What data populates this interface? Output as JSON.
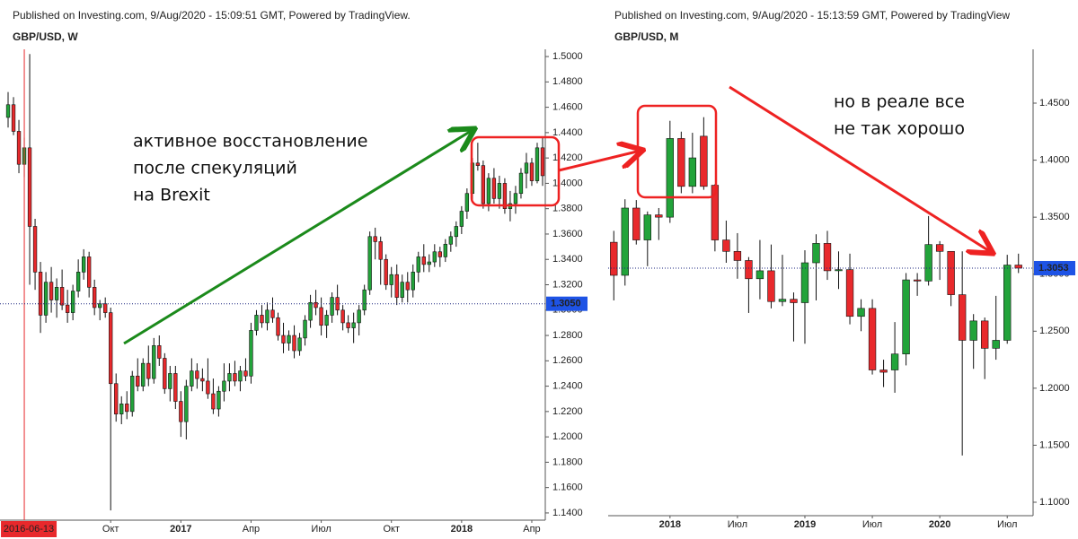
{
  "chart_data": [
    {
      "type": "candlestick",
      "title": "Published on Investing.com, 9/Aug/2020 - 15:09:51 GMT, Powered by TradingView.",
      "subtitle": "GBP/USD, W",
      "up_color": "#22a33a",
      "down_color": "#e8292c",
      "xlim": [
        -1.5,
        99.5
      ],
      "ylim": [
        1.1343,
        1.5057
      ],
      "yticks": [
        {
          "value": 1.5,
          "label": "1.5000"
        },
        {
          "value": 1.48,
          "label": "1.4800"
        },
        {
          "value": 1.46,
          "label": "1.4600"
        },
        {
          "value": 1.44,
          "label": "1.4400"
        },
        {
          "value": 1.42,
          "label": "1.4200"
        },
        {
          "value": 1.4,
          "label": "1.4000"
        },
        {
          "value": 1.38,
          "label": "1.3800"
        },
        {
          "value": 1.36,
          "label": "1.3600"
        },
        {
          "value": 1.34,
          "label": "1.3400"
        },
        {
          "value": 1.32,
          "label": "1.3200"
        },
        {
          "value": 1.3,
          "label": "1.3000"
        },
        {
          "value": 1.28,
          "label": "1.2800"
        },
        {
          "value": 1.26,
          "label": "1.2600"
        },
        {
          "value": 1.24,
          "label": "1.2400"
        },
        {
          "value": 1.22,
          "label": "1.2200"
        },
        {
          "value": 1.2,
          "label": "1.2000"
        },
        {
          "value": 1.18,
          "label": "1.1800"
        },
        {
          "value": 1.16,
          "label": "1.1600"
        },
        {
          "value": 1.14,
          "label": "1.1400"
        }
      ],
      "xticks": [
        {
          "value": 19,
          "label": "Окт"
        },
        {
          "value": 32,
          "label": "2017",
          "bold": true
        },
        {
          "value": 45,
          "label": "Апр"
        },
        {
          "value": 58,
          "label": "Июл"
        },
        {
          "value": 71,
          "label": "Окт"
        },
        {
          "value": 84,
          "label": "2018",
          "bold": true
        },
        {
          "value": 97,
          "label": "Апр"
        }
      ],
      "cursor": {
        "value": 3,
        "label": "2016-06-13",
        "color": "#e8292c"
      },
      "last_price": {
        "value": 1.305,
        "label": "1.3050",
        "color": "#1e53e5"
      },
      "annotations": [
        "активное восстановление",
        "после спекуляций",
        "на Brexit"
      ],
      "candles": [
        [
          1.452,
          1.472,
          1.444,
          1.462
        ],
        [
          1.462,
          1.468,
          1.438,
          1.441
        ],
        [
          1.441,
          1.45,
          1.408,
          1.415
        ],
        [
          1.415,
          1.436,
          1.405,
          1.428
        ],
        [
          1.428,
          1.502,
          1.32,
          1.366
        ],
        [
          1.366,
          1.372,
          1.316,
          1.33
        ],
        [
          1.33,
          1.338,
          1.282,
          1.296
        ],
        [
          1.296,
          1.33,
          1.29,
          1.322
        ],
        [
          1.322,
          1.334,
          1.298,
          1.308
        ],
        [
          1.308,
          1.325,
          1.294,
          1.318
        ],
        [
          1.318,
          1.332,
          1.3,
          1.304
        ],
        [
          1.304,
          1.316,
          1.29,
          1.298
        ],
        [
          1.298,
          1.32,
          1.292,
          1.315
        ],
        [
          1.315,
          1.34,
          1.31,
          1.33
        ],
        [
          1.33,
          1.348,
          1.324,
          1.342
        ],
        [
          1.342,
          1.346,
          1.31,
          1.318
        ],
        [
          1.318,
          1.324,
          1.296,
          1.302
        ],
        [
          1.302,
          1.308,
          1.292,
          1.305
        ],
        [
          1.305,
          1.31,
          1.294,
          1.298
        ],
        [
          1.298,
          1.302,
          1.142,
          1.242
        ],
        [
          1.242,
          1.25,
          1.212,
          1.218
        ],
        [
          1.218,
          1.232,
          1.21,
          1.226
        ],
        [
          1.226,
          1.236,
          1.214,
          1.22
        ],
        [
          1.22,
          1.252,
          1.216,
          1.248
        ],
        [
          1.248,
          1.262,
          1.236,
          1.24
        ],
        [
          1.24,
          1.262,
          1.236,
          1.258
        ],
        [
          1.258,
          1.272,
          1.24,
          1.246
        ],
        [
          1.246,
          1.278,
          1.242,
          1.272
        ],
        [
          1.272,
          1.28,
          1.256,
          1.262
        ],
        [
          1.262,
          1.266,
          1.234,
          1.238
        ],
        [
          1.238,
          1.256,
          1.228,
          1.25
        ],
        [
          1.25,
          1.256,
          1.222,
          1.228
        ],
        [
          1.228,
          1.236,
          1.2,
          1.212
        ],
        [
          1.212,
          1.245,
          1.198,
          1.24
        ],
        [
          1.24,
          1.262,
          1.236,
          1.252
        ],
        [
          1.252,
          1.258,
          1.238,
          1.246
        ],
        [
          1.246,
          1.254,
          1.236,
          1.244
        ],
        [
          1.244,
          1.262,
          1.23,
          1.234
        ],
        [
          1.234,
          1.246,
          1.218,
          1.222
        ],
        [
          1.222,
          1.24,
          1.216,
          1.236
        ],
        [
          1.236,
          1.258,
          1.228,
          1.244
        ],
        [
          1.244,
          1.258,
          1.236,
          1.25
        ],
        [
          1.25,
          1.26,
          1.24,
          1.244
        ],
        [
          1.244,
          1.256,
          1.236,
          1.252
        ],
        [
          1.252,
          1.262,
          1.244,
          1.248
        ],
        [
          1.248,
          1.29,
          1.242,
          1.284
        ],
        [
          1.284,
          1.3,
          1.28,
          1.296
        ],
        [
          1.296,
          1.304,
          1.286,
          1.29
        ],
        [
          1.29,
          1.306,
          1.284,
          1.3
        ],
        [
          1.3,
          1.31,
          1.29,
          1.294
        ],
        [
          1.294,
          1.298,
          1.276,
          1.28
        ],
        [
          1.28,
          1.29,
          1.266,
          1.274
        ],
        [
          1.274,
          1.284,
          1.268,
          1.28
        ],
        [
          1.28,
          1.288,
          1.262,
          1.268
        ],
        [
          1.268,
          1.282,
          1.264,
          1.278
        ],
        [
          1.278,
          1.296,
          1.272,
          1.292
        ],
        [
          1.292,
          1.312,
          1.286,
          1.306
        ],
        [
          1.306,
          1.316,
          1.296,
          1.302
        ],
        [
          1.302,
          1.31,
          1.28,
          1.288
        ],
        [
          1.288,
          1.3,
          1.278,
          1.296
        ],
        [
          1.296,
          1.314,
          1.29,
          1.31
        ],
        [
          1.31,
          1.32,
          1.296,
          1.3
        ],
        [
          1.3,
          1.304,
          1.284,
          1.29
        ],
        [
          1.29,
          1.296,
          1.282,
          1.286
        ],
        [
          1.286,
          1.298,
          1.274,
          1.29
        ],
        [
          1.29,
          1.304,
          1.28,
          1.3
        ],
        [
          1.3,
          1.32,
          1.296,
          1.316
        ],
        [
          1.316,
          1.362,
          1.312,
          1.358
        ],
        [
          1.358,
          1.365,
          1.34,
          1.354
        ],
        [
          1.354,
          1.358,
          1.32,
          1.34
        ],
        [
          1.34,
          1.344,
          1.316,
          1.32
        ],
        [
          1.32,
          1.334,
          1.31,
          1.328
        ],
        [
          1.328,
          1.336,
          1.304,
          1.31
        ],
        [
          1.31,
          1.328,
          1.306,
          1.322
        ],
        [
          1.322,
          1.33,
          1.306,
          1.316
        ],
        [
          1.316,
          1.336,
          1.31,
          1.33
        ],
        [
          1.33,
          1.346,
          1.322,
          1.342
        ],
        [
          1.342,
          1.352,
          1.33,
          1.336
        ],
        [
          1.336,
          1.344,
          1.33,
          1.338
        ],
        [
          1.338,
          1.352,
          1.334,
          1.346
        ],
        [
          1.346,
          1.35,
          1.334,
          1.342
        ],
        [
          1.342,
          1.356,
          1.338,
          1.352
        ],
        [
          1.352,
          1.362,
          1.346,
          1.358
        ],
        [
          1.358,
          1.37,
          1.35,
          1.366
        ],
        [
          1.366,
          1.382,
          1.36,
          1.378
        ],
        [
          1.378,
          1.396,
          1.372,
          1.392
        ],
        [
          1.392,
          1.42,
          1.386,
          1.416
        ],
        [
          1.416,
          1.432,
          1.41,
          1.414
        ],
        [
          1.414,
          1.418,
          1.38,
          1.384
        ],
        [
          1.384,
          1.408,
          1.378,
          1.404
        ],
        [
          1.404,
          1.412,
          1.384,
          1.388
        ],
        [
          1.388,
          1.406,
          1.38,
          1.4
        ],
        [
          1.4,
          1.404,
          1.376,
          1.38
        ],
        [
          1.38,
          1.394,
          1.37,
          1.384
        ],
        [
          1.384,
          1.398,
          1.376,
          1.392
        ],
        [
          1.392,
          1.412,
          1.388,
          1.408
        ],
        [
          1.408,
          1.424,
          1.396,
          1.416
        ],
        [
          1.416,
          1.42,
          1.398,
          1.402
        ],
        [
          1.402,
          1.432,
          1.4,
          1.428
        ],
        [
          1.428,
          1.436,
          1.398,
          1.406
        ]
      ]
    },
    {
      "type": "candlestick",
      "title": "Published on Investing.com, 9/Aug/2020 - 15:13:59 GMT, Powered by TradingView",
      "subtitle": "GBP/USD, M",
      "up_color": "#22a33a",
      "down_color": "#e8292c",
      "xlim": [
        -0.5,
        37.3
      ],
      "ylim": [
        1.0882,
        1.4972
      ],
      "yticks": [
        {
          "value": 1.45,
          "label": "1.4500"
        },
        {
          "value": 1.4,
          "label": "1.4000"
        },
        {
          "value": 1.35,
          "label": "1.3500"
        },
        {
          "value": 1.3,
          "label": "1.3000"
        },
        {
          "value": 1.25,
          "label": "1.2500"
        },
        {
          "value": 1.2,
          "label": "1.2000"
        },
        {
          "value": 1.15,
          "label": "1.1500"
        },
        {
          "value": 1.1,
          "label": "1.1000"
        }
      ],
      "xticks": [
        {
          "value": 5,
          "label": "2018",
          "bold": true
        },
        {
          "value": 11,
          "label": "Июл"
        },
        {
          "value": 17,
          "label": "2019",
          "bold": true
        },
        {
          "value": 23,
          "label": "Июл"
        },
        {
          "value": 29,
          "label": "2020",
          "bold": true
        },
        {
          "value": 35,
          "label": "Июл"
        }
      ],
      "last_price": {
        "value": 1.3053,
        "label": "1.3053",
        "color": "#1e53e5"
      },
      "annotations": [
        "но в реале все",
        "не так хорошо"
      ],
      "candles": [
        [
          1.328,
          1.338,
          1.277,
          1.299
        ],
        [
          1.299,
          1.3657,
          1.29,
          1.358
        ],
        [
          1.358,
          1.365,
          1.326,
          1.33
        ],
        [
          1.33,
          1.355,
          1.307,
          1.352
        ],
        [
          1.352,
          1.358,
          1.33,
          1.35
        ],
        [
          1.35,
          1.4345,
          1.345,
          1.419
        ],
        [
          1.419,
          1.425,
          1.371,
          1.377
        ],
        [
          1.377,
          1.424,
          1.371,
          1.402
        ],
        [
          1.421,
          1.4377,
          1.374,
          1.377
        ],
        [
          1.378,
          1.379,
          1.32,
          1.33
        ],
        [
          1.33,
          1.347,
          1.31,
          1.32
        ],
        [
          1.32,
          1.336,
          1.296,
          1.312
        ],
        [
          1.312,
          1.315,
          1.266,
          1.296
        ],
        [
          1.296,
          1.33,
          1.278,
          1.303
        ],
        [
          1.303,
          1.326,
          1.27,
          1.276
        ],
        [
          1.276,
          1.317,
          1.272,
          1.278
        ],
        [
          1.278,
          1.284,
          1.241,
          1.275
        ],
        [
          1.275,
          1.321,
          1.239,
          1.31
        ],
        [
          1.31,
          1.335,
          1.277,
          1.327
        ],
        [
          1.327,
          1.338,
          1.295,
          1.303
        ],
        [
          1.303,
          1.32,
          1.287,
          1.304
        ],
        [
          1.304,
          1.318,
          1.256,
          1.263
        ],
        [
          1.263,
          1.278,
          1.25,
          1.27
        ],
        [
          1.27,
          1.278,
          1.212,
          1.216
        ],
        [
          1.216,
          1.225,
          1.201,
          1.214
        ],
        [
          1.216,
          1.258,
          1.196,
          1.23
        ],
        [
          1.23,
          1.301,
          1.22,
          1.295
        ],
        [
          1.295,
          1.301,
          1.281,
          1.294
        ],
        [
          1.294,
          1.351,
          1.29,
          1.326
        ],
        [
          1.326,
          1.329,
          1.295,
          1.32
        ],
        [
          1.32,
          1.32,
          1.272,
          1.282
        ],
        [
          1.282,
          1.32,
          1.141,
          1.242
        ],
        [
          1.242,
          1.265,
          1.217,
          1.259
        ],
        [
          1.259,
          1.262,
          1.208,
          1.235
        ],
        [
          1.235,
          1.281,
          1.225,
          1.242
        ],
        [
          1.242,
          1.317,
          1.239,
          1.308
        ],
        [
          1.308,
          1.318,
          1.301,
          1.3053
        ]
      ]
    }
  ]
}
